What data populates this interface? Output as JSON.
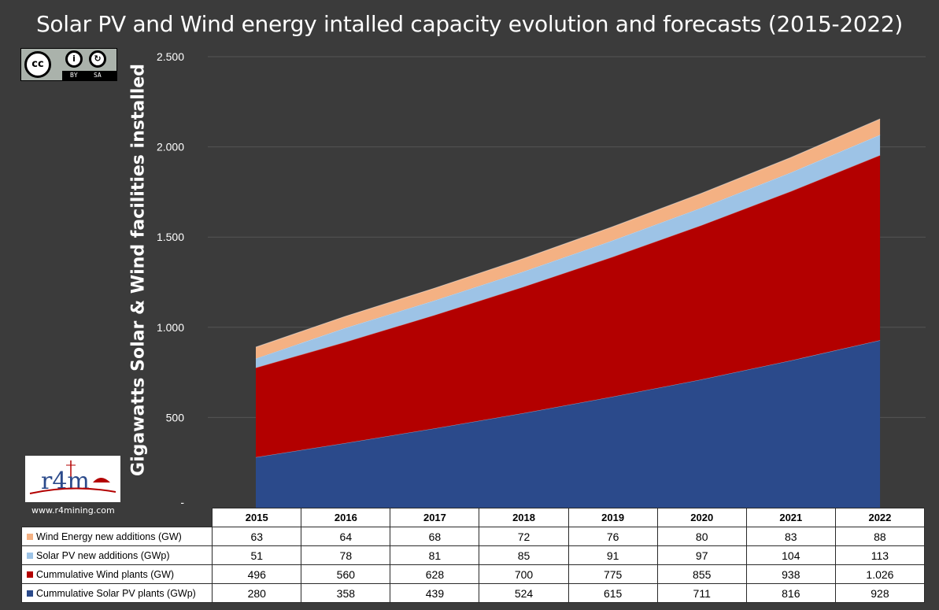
{
  "chart_data": {
    "type": "area",
    "stacked": true,
    "title": "Solar PV and Wind energy intalled capacity evolution and forecasts (2015-2022)",
    "ylabel": "Gigawatts Solar & Wind facilities  installed",
    "xlabel": "",
    "categories": [
      "2015",
      "2016",
      "2017",
      "2018",
      "2019",
      "2020",
      "2021",
      "2022"
    ],
    "ylim": [
      0,
      2500
    ],
    "yticks": [
      {
        "value": 0,
        "label": "-"
      },
      {
        "value": 500,
        "label": "500"
      },
      {
        "value": 1000,
        "label": "1.000"
      },
      {
        "value": 1500,
        "label": "1.500"
      },
      {
        "value": 2000,
        "label": "2.000"
      },
      {
        "value": 2500,
        "label": "2.500"
      }
    ],
    "grid": true,
    "series": [
      {
        "name": "Cummulative Solar PV plants (GWp)",
        "color": "#2b4a8b",
        "values": [
          280,
          358,
          439,
          524,
          615,
          711,
          816,
          928
        ],
        "labels": [
          "280",
          "358",
          "439",
          "524",
          "615",
          "711",
          "816",
          "928"
        ]
      },
      {
        "name": "Cummulative Wind plants (GW)",
        "color": "#b30000",
        "values": [
          496,
          560,
          628,
          700,
          775,
          855,
          938,
          1026
        ],
        "labels": [
          "496",
          "560",
          "628",
          "700",
          "775",
          "855",
          "938",
          "1.026"
        ]
      },
      {
        "name": "Solar PV new additions (GWp)",
        "color": "#9dc3e6",
        "values": [
          51,
          78,
          81,
          85,
          91,
          97,
          104,
          113
        ],
        "labels": [
          "51",
          "78",
          "81",
          "85",
          "91",
          "97",
          "104",
          "113"
        ]
      },
      {
        "name": "Wind Energy new additions (GW)",
        "color": "#f4b183",
        "values": [
          63,
          64,
          68,
          72,
          76,
          80,
          83,
          88
        ],
        "labels": [
          "63",
          "64",
          "68",
          "72",
          "76",
          "80",
          "83",
          "88"
        ]
      }
    ],
    "table_row_order": [
      3,
      2,
      1,
      0
    ]
  },
  "badge": {
    "by": "BY",
    "sa": "SA",
    "cc": "cc"
  },
  "logo": {
    "url": "www.r4mining.com",
    "text": "r4m"
  },
  "colors": {
    "background": "#3b3b3b",
    "grid": "#555555"
  }
}
